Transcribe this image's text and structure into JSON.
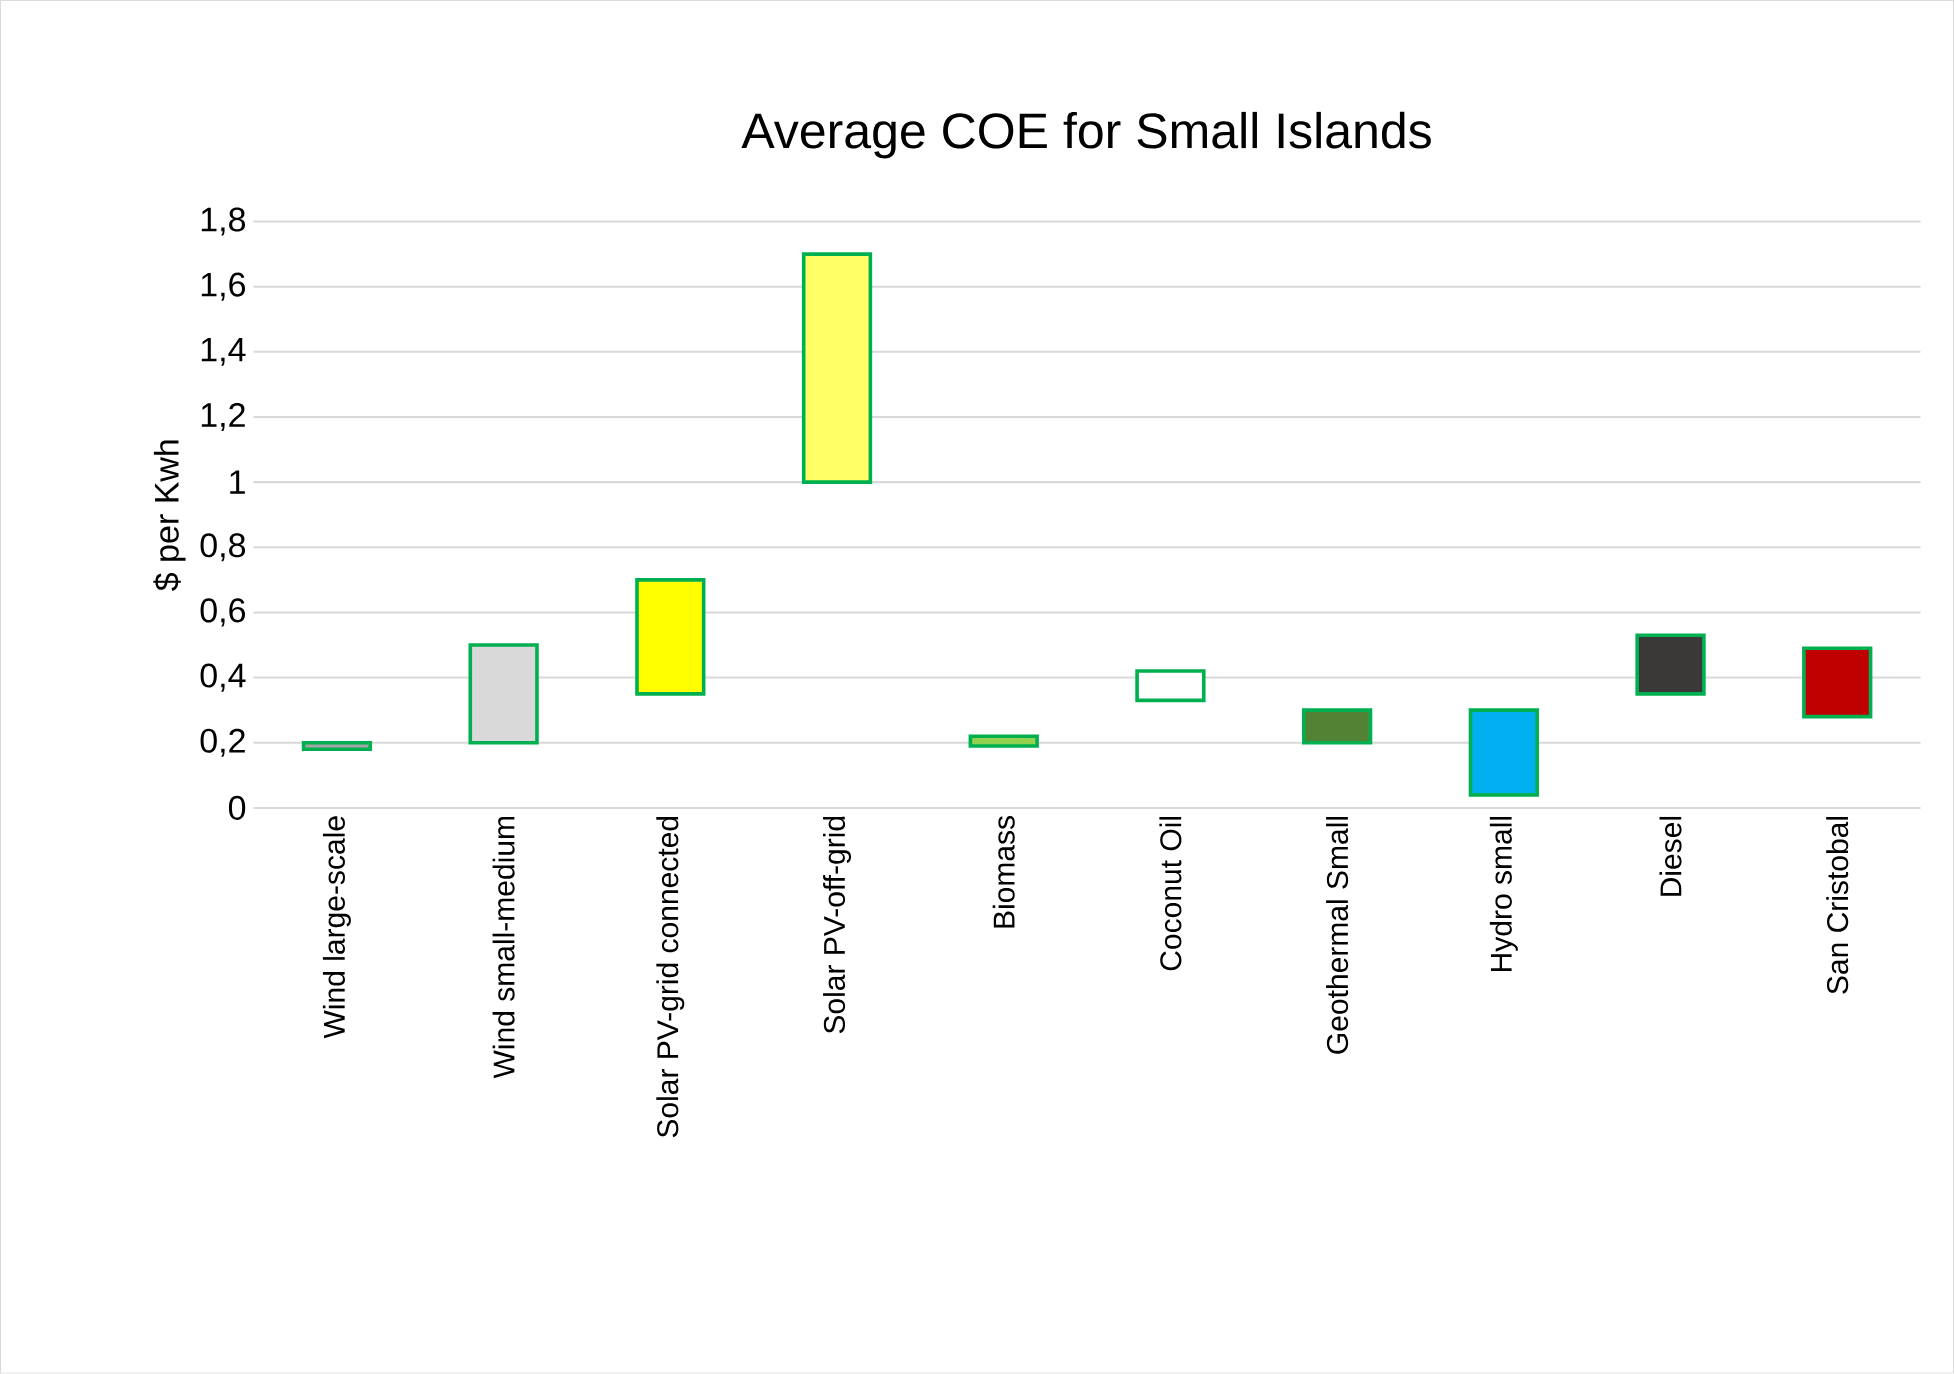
{
  "chart_data": {
    "type": "bar",
    "title": "Average COE for Small Islands",
    "ylabel": "$ per Kwh",
    "categories": [
      "Wind large-scale",
      "Wind small-medium",
      "Solar PV-grid connected",
      "Solar PV-off-grid",
      "Biomass",
      "Coconut Oil",
      "Geothermal Small",
      "Hydro small",
      "Diesel",
      "San Cristobal"
    ],
    "base": [
      0.18,
      0.2,
      0.35,
      1.0,
      0.19,
      0.33,
      0.2,
      0.04,
      0.35,
      0.28
    ],
    "values": [
      0.02,
      0.3,
      0.35,
      0.7,
      0.03,
      0.09,
      0.1,
      0.26,
      0.18,
      0.21
    ],
    "colors": [
      "#a5a5a5",
      "#d9d9d9",
      "#ffff00",
      "#ffff66",
      "#92d050",
      "#ffffff",
      "#548235",
      "#00b0f0",
      "#3b3838",
      "#c00000"
    ],
    "ylim": [
      0,
      1.8
    ],
    "yticks": [
      0,
      {
        "value": 0.2,
        "label": "0,2"
      },
      {
        "value": 0.4,
        "label": "0,4"
      },
      {
        "value": 0.6,
        "label": "0,6"
      },
      {
        "value": 0.8,
        "label": "0,8"
      },
      1,
      {
        "value": 1.2,
        "label": "1,2"
      },
      {
        "value": 1.4,
        "label": "1,4"
      },
      {
        "value": 1.6,
        "label": "1,6"
      },
      {
        "value": 1.8,
        "label": "1,8"
      }
    ],
    "grid": "y"
  }
}
